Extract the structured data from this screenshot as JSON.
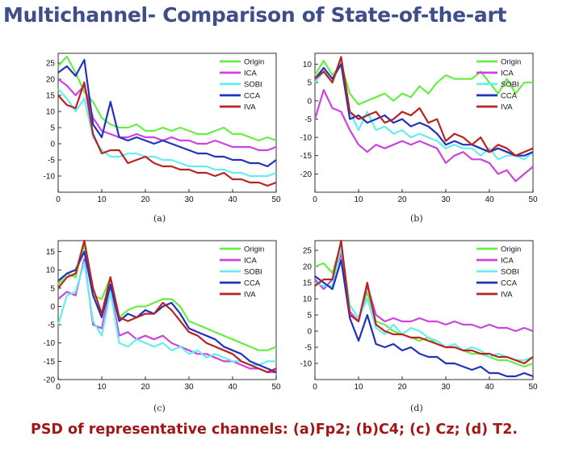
{
  "slide": {
    "title": "Multichannel- Comparison of State-of-the-art",
    "caption": "PSD of representative channels: (a)Fp2; (b)C4; (c) Cz; (d) T2."
  },
  "series_colors": {
    "Origin": "#66ee44",
    "ICA": "#cc44dd",
    "SOBI": "#66eeee",
    "CCA": "#2233bb",
    "IVA": "#bb2222"
  },
  "chart_data": [
    {
      "type": "line",
      "label": "(a)",
      "xlim": [
        0,
        50
      ],
      "ylim": [
        -15,
        28
      ],
      "xticks": [
        0,
        10,
        20,
        30,
        40,
        50
      ],
      "yticks": [
        -10,
        -5,
        0,
        5,
        10,
        15,
        20,
        25
      ],
      "legend": "top-right",
      "grid": false,
      "x": [
        0,
        2,
        4,
        6,
        8,
        10,
        12,
        14,
        16,
        18,
        20,
        22,
        24,
        26,
        28,
        30,
        32,
        34,
        36,
        38,
        40,
        42,
        44,
        46,
        48,
        50
      ],
      "series": [
        {
          "name": "Origin",
          "values": [
            24,
            27,
            22,
            16,
            13,
            8,
            6,
            5,
            5,
            6,
            4,
            4,
            5,
            4,
            5,
            4,
            3,
            3,
            4,
            5,
            3,
            3,
            2,
            1,
            2,
            1
          ]
        },
        {
          "name": "ICA",
          "values": [
            20,
            18,
            15,
            18,
            8,
            4,
            3,
            2,
            2,
            3,
            2,
            2,
            1,
            2,
            1,
            1,
            0,
            0,
            1,
            0,
            -1,
            -1,
            -1,
            -2,
            -2,
            -1
          ]
        },
        {
          "name": "SOBI",
          "values": [
            17,
            14,
            10,
            14,
            2,
            -2,
            -4,
            -4,
            -3,
            -3,
            -4,
            -4,
            -5,
            -5,
            -6,
            -7,
            -7,
            -7,
            -8,
            -8,
            -9,
            -9,
            -10,
            -10,
            -10,
            -9
          ]
        },
        {
          "name": "CCA",
          "values": [
            22,
            24,
            21,
            26,
            6,
            2,
            13,
            2,
            1,
            2,
            1,
            0,
            1,
            0,
            -1,
            -2,
            -3,
            -3,
            -4,
            -4,
            -5,
            -5,
            -6,
            -6,
            -7,
            -5
          ]
        },
        {
          "name": "IVA",
          "values": [
            15,
            12,
            11,
            19,
            3,
            -3,
            -2,
            -2,
            -6,
            -5,
            -4,
            -6,
            -7,
            -7,
            -8,
            -8,
            -9,
            -9,
            -10,
            -9,
            -11,
            -11,
            -12,
            -12,
            -13,
            -12
          ]
        }
      ]
    },
    {
      "type": "line",
      "label": "(b)",
      "xlim": [
        0,
        50
      ],
      "ylim": [
        -25,
        13
      ],
      "xticks": [
        0,
        10,
        20,
        30,
        40,
        50
      ],
      "yticks": [
        -20,
        -15,
        -10,
        -5,
        0,
        5,
        10
      ],
      "legend": "top-right",
      "grid": false,
      "x": [
        0,
        2,
        4,
        6,
        8,
        10,
        12,
        14,
        16,
        18,
        20,
        22,
        24,
        26,
        28,
        30,
        32,
        34,
        36,
        38,
        40,
        42,
        44,
        46,
        48,
        50
      ],
      "series": [
        {
          "name": "Origin",
          "values": [
            7,
            11,
            7,
            10,
            2,
            -1,
            0,
            1,
            2,
            0,
            2,
            1,
            4,
            2,
            5,
            7,
            6,
            6,
            6,
            8,
            5,
            2,
            6,
            2,
            5,
            5
          ]
        },
        {
          "name": "ICA",
          "values": [
            -5,
            3,
            -2,
            -3,
            -8,
            -12,
            -14,
            -12,
            -13,
            -12,
            -11,
            -12,
            -11,
            -12,
            -13,
            -17,
            -15,
            -14,
            -16,
            -16,
            -17,
            -20,
            -19,
            -22,
            -20,
            -18
          ]
        },
        {
          "name": "SOBI",
          "values": [
            5,
            8,
            5,
            11,
            -3,
            -8,
            -3,
            -8,
            -7,
            -9,
            -8,
            -10,
            -9,
            -10,
            -11,
            -13,
            -12,
            -13,
            -13,
            -15,
            -13,
            -16,
            -15,
            -15,
            -16,
            -14
          ]
        },
        {
          "name": "CCA",
          "values": [
            6,
            9,
            6,
            10,
            -5,
            -4,
            -6,
            -5,
            -4,
            -6,
            -5,
            -7,
            -6,
            -7,
            -9,
            -12,
            -11,
            -12,
            -12,
            -13,
            -14,
            -13,
            -14,
            -15,
            -15,
            -14
          ]
        },
        {
          "name": "IVA",
          "values": [
            6,
            8,
            5,
            12,
            -3,
            -5,
            -4,
            -3,
            -6,
            -5,
            -3,
            -4,
            -2,
            -6,
            -5,
            -11,
            -9,
            -10,
            -12,
            -10,
            -14,
            -12,
            -13,
            -15,
            -14,
            -13
          ]
        }
      ]
    },
    {
      "type": "line",
      "label": "(c)",
      "xlim": [
        0,
        50
      ],
      "ylim": [
        -20,
        18
      ],
      "xticks": [
        0,
        10,
        20,
        30,
        40,
        50
      ],
      "yticks": [
        -20,
        -15,
        -10,
        -5,
        0,
        5,
        10,
        15
      ],
      "legend": "top-right",
      "grid": false,
      "x": [
        0,
        2,
        4,
        6,
        8,
        10,
        12,
        14,
        16,
        18,
        20,
        22,
        24,
        26,
        28,
        30,
        32,
        34,
        36,
        38,
        40,
        42,
        44,
        46,
        48,
        50
      ],
      "series": [
        {
          "name": "Origin",
          "values": [
            6,
            9,
            8,
            17,
            3,
            2,
            8,
            -3,
            -1,
            0,
            0,
            1,
            2,
            2,
            0,
            -4,
            -5,
            -6,
            -7,
            -8,
            -9,
            -10,
            -11,
            -12,
            -12,
            -11
          ]
        },
        {
          "name": "ICA",
          "values": [
            2,
            4,
            3,
            13,
            -5,
            -6,
            5,
            -8,
            -7,
            -9,
            -8,
            -9,
            -8,
            -10,
            -11,
            -12,
            -13,
            -13,
            -14,
            -15,
            -15,
            -16,
            -17,
            -17,
            -18,
            -18
          ]
        },
        {
          "name": "SOBI",
          "values": [
            -5,
            3,
            4,
            12,
            -4,
            -8,
            4,
            -10,
            -11,
            -9,
            -10,
            -11,
            -10,
            -12,
            -11,
            -13,
            -12,
            -14,
            -13,
            -14,
            -15,
            -15,
            -16,
            -16,
            -15,
            -15
          ]
        },
        {
          "name": "CCA",
          "values": [
            7,
            9,
            10,
            15,
            3,
            -3,
            6,
            -4,
            -2,
            -3,
            -1,
            -2,
            0,
            1,
            -2,
            -6,
            -7,
            -8,
            -9,
            -11,
            -12,
            -13,
            -15,
            -16,
            -17,
            -18
          ]
        },
        {
          "name": "IVA",
          "values": [
            5,
            8,
            9,
            18,
            5,
            -2,
            8,
            -3,
            -4,
            -3,
            -2,
            -2,
            1,
            -1,
            -4,
            -7,
            -8,
            -10,
            -11,
            -12,
            -13,
            -15,
            -16,
            -17,
            -18,
            -17
          ]
        }
      ]
    },
    {
      "type": "line",
      "label": "(d)",
      "xlim": [
        0,
        50
      ],
      "ylim": [
        -15,
        28
      ],
      "xticks": [
        0,
        10,
        20,
        30,
        40,
        50
      ],
      "yticks": [
        -10,
        -5,
        0,
        5,
        10,
        15,
        20,
        25
      ],
      "legend": "top-right",
      "grid": false,
      "x": [
        0,
        2,
        4,
        6,
        8,
        10,
        12,
        14,
        16,
        18,
        20,
        22,
        24,
        26,
        28,
        30,
        32,
        34,
        36,
        38,
        40,
        42,
        44,
        46,
        48,
        50
      ],
      "series": [
        {
          "name": "Origin",
          "values": [
            20,
            21,
            18,
            27,
            8,
            4,
            12,
            3,
            2,
            0,
            -1,
            -2,
            -3,
            -2,
            -4,
            -5,
            -5,
            -6,
            -7,
            -7,
            -8,
            -9,
            -9,
            -10,
            -11,
            -10
          ]
        },
        {
          "name": "ICA",
          "values": [
            16,
            13,
            16,
            24,
            6,
            3,
            14,
            5,
            3,
            4,
            3,
            3,
            4,
            3,
            3,
            2,
            3,
            2,
            2,
            1,
            2,
            1,
            1,
            0,
            1,
            0
          ]
        },
        {
          "name": "SOBI",
          "values": [
            15,
            14,
            14,
            26,
            8,
            4,
            10,
            1,
            -1,
            2,
            -1,
            1,
            0,
            -2,
            -3,
            -5,
            -4,
            -6,
            -5,
            -6,
            -8,
            -7,
            -8,
            -9,
            -9,
            -8
          ]
        },
        {
          "name": "CCA",
          "values": [
            17,
            15,
            13,
            22,
            4,
            -3,
            5,
            -4,
            -5,
            -4,
            -6,
            -5,
            -7,
            -8,
            -8,
            -10,
            -10,
            -11,
            -12,
            -11,
            -13,
            -13,
            -14,
            -14,
            -13,
            -14
          ]
        },
        {
          "name": "IVA",
          "values": [
            14,
            16,
            16,
            28,
            5,
            3,
            15,
            2,
            0,
            -1,
            -1,
            -2,
            -2,
            -3,
            -4,
            -5,
            -5,
            -6,
            -6,
            -7,
            -7,
            -8,
            -8,
            -9,
            -10,
            -8
          ]
        }
      ]
    }
  ]
}
